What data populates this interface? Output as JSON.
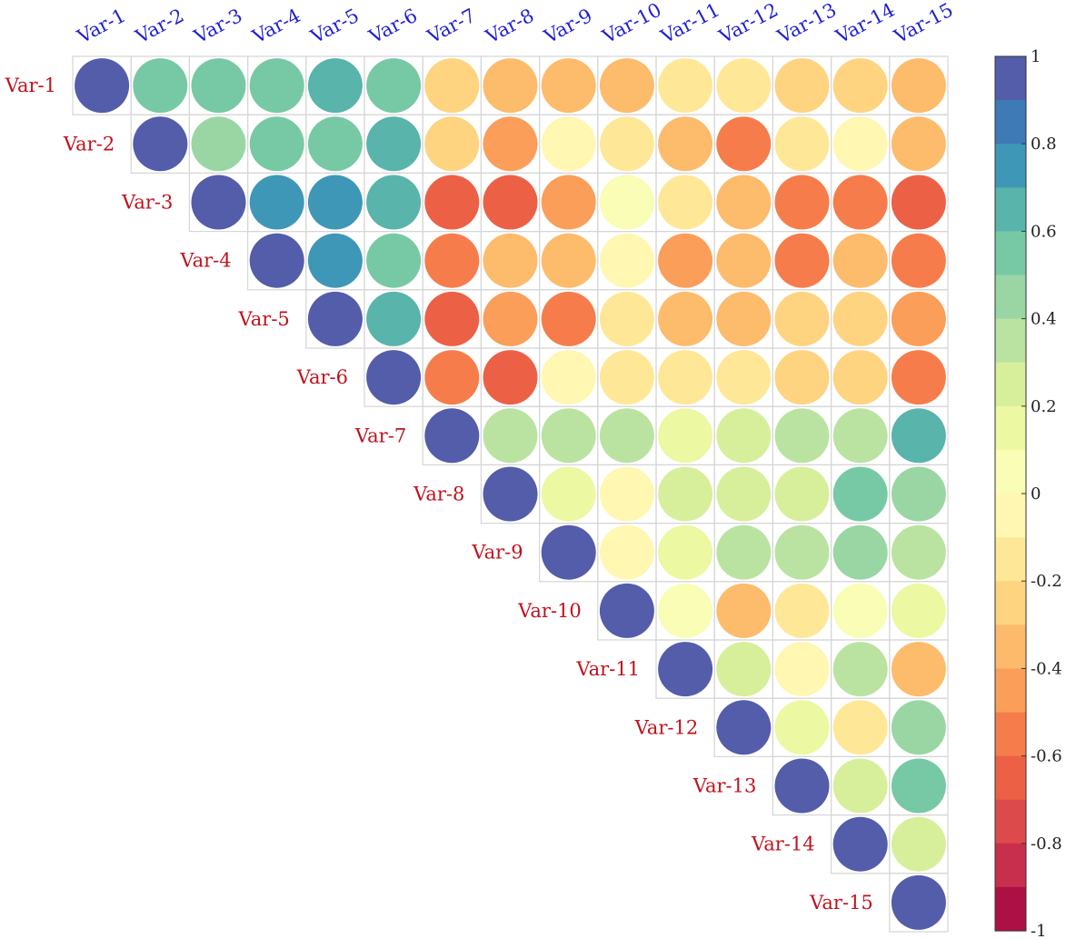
{
  "chart_data": {
    "type": "heatmap",
    "style": "upper-triangle correlation matrix with circle markers",
    "variables": [
      "Var-1",
      "Var-2",
      "Var-3",
      "Var-4",
      "Var-5",
      "Var-6",
      "Var-7",
      "Var-8",
      "Var-9",
      "Var-10",
      "Var-11",
      "Var-12",
      "Var-13",
      "Var-14",
      "Var-15"
    ],
    "matrix_upper": [
      [
        1,
        0.5,
        0.5,
        0.55,
        0.65,
        0.55,
        -0.3,
        -0.35,
        -0.35,
        -0.35,
        -0.2,
        -0.15,
        -0.25,
        -0.25,
        -0.35
      ],
      [
        1,
        0.45,
        0.55,
        0.5,
        0.65,
        -0.3,
        -0.45,
        -0.1,
        -0.2,
        -0.4,
        -0.55,
        -0.15,
        -0.1,
        -0.35
      ],
      [
        1,
        0.75,
        0.75,
        0.65,
        -0.65,
        -0.65,
        -0.45,
        0,
        -0.2,
        -0.35,
        -0.6,
        -0.6,
        -0.65
      ],
      [
        1,
        0.75,
        0.5,
        -0.55,
        -0.35,
        -0.4,
        -0.1,
        -0.45,
        -0.35,
        -0.55,
        -0.35,
        -0.55
      ],
      [
        1,
        0.65,
        -0.65,
        -0.45,
        -0.55,
        -0.15,
        -0.35,
        -0.35,
        -0.3,
        -0.3,
        -0.45
      ],
      [
        1,
        -0.55,
        -0.65,
        -0.1,
        -0.2,
        -0.15,
        -0.15,
        -0.3,
        -0.3,
        -0.55
      ],
      [
        1,
        0.3,
        0.35,
        0.3,
        0.15,
        0.25,
        0.3,
        0.35,
        0.6
      ],
      [
        1,
        0.1,
        -0.1,
        0.25,
        0.25,
        0.25,
        0.5,
        0.4
      ],
      [
        1,
        -0.1,
        0.15,
        0.35,
        0.3,
        0.4,
        0.35
      ],
      [
        1,
        0.05,
        -0.35,
        -0.2,
        0.05,
        0.1
      ],
      [
        1,
        0.2,
        -0.1,
        0.3,
        -0.35
      ],
      [
        1,
        0.15,
        -0.2,
        0.4
      ],
      [
        1,
        0.25,
        0.55
      ],
      [
        1,
        0.25
      ],
      [
        1
      ]
    ],
    "colorbar": {
      "range": [
        -1,
        1
      ],
      "ticks": [
        "1",
        "0.8",
        "0.6",
        "0.4",
        "0.2",
        "0",
        "-0.2",
        "-0.4",
        "-0.6",
        "-0.8",
        "-1"
      ],
      "colormap": "Spectral (reversed)",
      "levels": 20
    },
    "colors": {
      "top_label": "#1f1fd1",
      "left_label": "#c0121c",
      "grid": "#d6d6d6",
      "colormap_stops": [
        "#9e0142",
        "#d53e4f",
        "#f46d43",
        "#fdae61",
        "#fee08b",
        "#ffffbf",
        "#e6f598",
        "#abdda4",
        "#66c2a5",
        "#3288bd",
        "#5e4fa2"
      ]
    },
    "title": "",
    "xlabel": "",
    "ylabel": ""
  }
}
